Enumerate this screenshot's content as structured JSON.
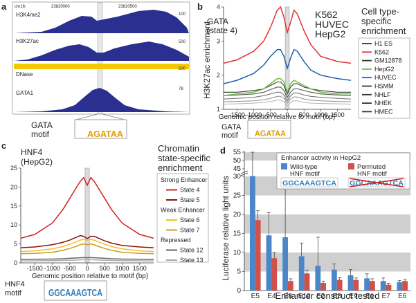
{
  "panels": {
    "a": "a",
    "b": "b",
    "c": "c",
    "d": "d"
  },
  "panel_a": {
    "coords": [
      "chr16:",
      "23820000",
      "23820500"
    ],
    "tracks": [
      {
        "label": "H3K4me2",
        "max": "100"
      },
      {
        "label": "H3K27ac",
        "max": "500"
      },
      {
        "label": "DNase",
        "max": "500"
      },
      {
        "label": "GATA1",
        "max": "78"
      }
    ],
    "motif_label": [
      "GATA",
      "motif"
    ],
    "motif_text": "AGATAA"
  },
  "panel_b": {
    "inset": [
      "GATA",
      "(state 4)"
    ],
    "series_labels": [
      {
        "text": "K562",
        "color": "#e03030"
      },
      {
        "text": "HUVEC",
        "color": "#1f5fb0"
      },
      {
        "text": "HepG2",
        "color": "#6abf45"
      }
    ],
    "legend_title": [
      "Cell type-",
      "specific",
      "enrichment"
    ],
    "legend": [
      {
        "name": "H1 ES",
        "color": "#333333"
      },
      {
        "name": "K562",
        "color": "#e03030"
      },
      {
        "name": "GM12878",
        "color": "#333333"
      },
      {
        "name": "HepG2",
        "color": "#6abf45"
      },
      {
        "name": "HUVEC",
        "color": "#1f5fb0"
      },
      {
        "name": "HSMM",
        "color": "#333333"
      },
      {
        "name": "NHLF",
        "color": "#333333"
      },
      {
        "name": "NHEK",
        "color": "#333333"
      },
      {
        "name": "HMEC",
        "color": "#333333"
      }
    ],
    "motif_label": [
      "GATA",
      "motif"
    ],
    "motif_text": "AGATAA"
  },
  "panel_c": {
    "inset": [
      "HNF4",
      "(HepG2)"
    ],
    "legend_title": [
      "Chromatin",
      "state-specific",
      "enrichment"
    ],
    "legend": [
      {
        "header": "Strong Enhancer"
      },
      {
        "name": "State 4",
        "color": "#d42020"
      },
      {
        "name": "State 5",
        "color": "#8a1010"
      },
      {
        "header": "Weak Enhancer"
      },
      {
        "name": "State 6",
        "color": "#f0c020"
      },
      {
        "name": "State 7",
        "color": "#c8a020"
      },
      {
        "header": "Repressed"
      },
      {
        "name": "State 12",
        "color": "#666666"
      },
      {
        "name": "State 13",
        "color": "#aaaaaa"
      }
    ],
    "motif_label": [
      "HNF4",
      "motif"
    ],
    "motif_text": "GGCAAAGTCA"
  },
  "panel_d": {
    "legend_title": "Enhancer activity in HepG2",
    "legend": [
      {
        "name": "Wild-type",
        "name2": "HNF motif",
        "color": "#4a86c8"
      },
      {
        "name": "Permuted",
        "name2": "HNF motif",
        "color": "#d0504a"
      }
    ],
    "motif_text": "GGCAAAGTCA"
  },
  "chart_data": [
    {
      "type": "line",
      "panel": "b",
      "xlabel": "Genomic position relative to motif (bp)",
      "ylabel": "H3K27ac enrichment",
      "xlim": [
        -1900,
        1900
      ],
      "ylim": [
        1,
        4
      ],
      "xticks": [
        -1500,
        -1000,
        -500,
        0,
        500,
        1000,
        1500
      ],
      "yticks": [
        1,
        2,
        3,
        4
      ],
      "x": [
        -1900,
        -1500,
        -1000,
        -700,
        -500,
        -300,
        -200,
        -100,
        0,
        100,
        200,
        300,
        500,
        700,
        1000,
        1500,
        1900
      ],
      "series": [
        {
          "name": "K562",
          "color": "#e03030",
          "values": [
            2.35,
            2.45,
            2.7,
            3.0,
            3.4,
            3.9,
            4.0,
            3.7,
            3.25,
            3.55,
            3.9,
            3.8,
            3.3,
            2.9,
            2.55,
            2.4,
            2.35
          ]
        },
        {
          "name": "HUVEC",
          "color": "#1f5fb0",
          "values": [
            1.75,
            1.85,
            2.05,
            2.3,
            2.55,
            2.75,
            2.75,
            2.55,
            2.2,
            2.5,
            2.75,
            2.7,
            2.4,
            2.15,
            2.0,
            1.9,
            1.85
          ]
        },
        {
          "name": "HepG2",
          "color": "#6abf45",
          "values": [
            1.4,
            1.45,
            1.5,
            1.6,
            1.75,
            1.9,
            1.9,
            1.8,
            1.5,
            1.75,
            1.85,
            1.8,
            1.7,
            1.6,
            1.5,
            1.45,
            1.45
          ]
        },
        {
          "color": "#333333",
          "values": [
            1.5,
            1.5,
            1.55,
            1.6,
            1.7,
            1.8,
            1.8,
            1.7,
            1.45,
            1.65,
            1.75,
            1.75,
            1.65,
            1.6,
            1.55,
            1.5,
            1.5
          ]
        },
        {
          "color": "#555555",
          "values": [
            1.4,
            1.42,
            1.45,
            1.5,
            1.58,
            1.65,
            1.65,
            1.55,
            1.35,
            1.5,
            1.6,
            1.6,
            1.55,
            1.5,
            1.45,
            1.42,
            1.4
          ]
        },
        {
          "color": "#777777",
          "values": [
            1.3,
            1.32,
            1.35,
            1.4,
            1.45,
            1.5,
            1.5,
            1.42,
            1.25,
            1.4,
            1.48,
            1.48,
            1.42,
            1.38,
            1.35,
            1.32,
            1.3
          ]
        },
        {
          "color": "#999999",
          "values": [
            1.22,
            1.23,
            1.25,
            1.28,
            1.32,
            1.38,
            1.38,
            1.32,
            1.18,
            1.3,
            1.36,
            1.36,
            1.3,
            1.27,
            1.25,
            1.23,
            1.22
          ]
        },
        {
          "color": "#bbbbbb",
          "values": [
            1.15,
            1.16,
            1.18,
            1.2,
            1.23,
            1.27,
            1.27,
            1.22,
            1.1,
            1.2,
            1.25,
            1.25,
            1.2,
            1.18,
            1.17,
            1.16,
            1.15
          ]
        }
      ]
    },
    {
      "type": "line",
      "panel": "c",
      "xlabel": "Genomic position relative to motif (bp)",
      "ylabel": "",
      "xlim": [
        -1900,
        1900
      ],
      "ylim": [
        0,
        25
      ],
      "xticks": [
        -1500,
        -1000,
        -500,
        0,
        500,
        1000,
        1500
      ],
      "yticks": [
        0,
        5,
        10,
        15,
        20,
        25
      ],
      "x": [
        -1900,
        -1500,
        -1000,
        -700,
        -500,
        -300,
        -200,
        -100,
        0,
        100,
        200,
        300,
        500,
        700,
        1000,
        1500,
        1900
      ],
      "series": [
        {
          "name": "State 4",
          "color": "#d42020",
          "values": [
            6.5,
            7.5,
            10.5,
            14.0,
            17.0,
            20.0,
            21.5,
            22.5,
            20.5,
            22.5,
            21.5,
            20.0,
            17.0,
            14.0,
            10.5,
            7.5,
            6.5
          ]
        },
        {
          "name": "State 5",
          "color": "#8a1010",
          "values": [
            4.0,
            4.2,
            4.8,
            5.4,
            6.0,
            6.8,
            7.2,
            7.0,
            6.4,
            7.0,
            7.0,
            6.6,
            5.8,
            5.2,
            4.6,
            4.2,
            4.0
          ]
        },
        {
          "name": "State 6",
          "color": "#f0c020",
          "values": [
            3.0,
            3.2,
            3.7,
            4.3,
            4.9,
            5.6,
            6.0,
            6.2,
            6.0,
            6.2,
            6.0,
            5.6,
            4.9,
            4.3,
            3.7,
            3.2,
            3.0
          ]
        },
        {
          "name": "State 7",
          "color": "#c8a020",
          "values": [
            2.4,
            2.5,
            2.8,
            3.3,
            3.8,
            4.4,
            4.8,
            5.0,
            4.8,
            5.0,
            4.8,
            4.4,
            3.8,
            3.3,
            2.8,
            2.5,
            2.4
          ]
        },
        {
          "name": "State 12",
          "color": "#666666",
          "values": [
            0.9,
            0.95,
            1.0,
            1.1,
            1.2,
            1.3,
            1.35,
            1.4,
            1.35,
            1.4,
            1.35,
            1.3,
            1.2,
            1.1,
            1.0,
            0.95,
            0.9
          ]
        },
        {
          "name": "State 13",
          "color": "#aaaaaa",
          "values": [
            0.5,
            0.55,
            0.6,
            0.65,
            0.7,
            0.75,
            0.8,
            0.85,
            0.8,
            0.85,
            0.8,
            0.75,
            0.7,
            0.65,
            0.6,
            0.55,
            0.5
          ]
        }
      ]
    },
    {
      "type": "bar",
      "panel": "d",
      "xlabel": "Enhancer construct tested",
      "ylabel": "Luciferase relative light units",
      "yticks": [
        0,
        5,
        10,
        15,
        20,
        25,
        30,
        45,
        50,
        55
      ],
      "categories": [
        "E5",
        "E4",
        "E8",
        "E10",
        "E2",
        "E3",
        "E9",
        "E1",
        "E7",
        "E6"
      ],
      "series": [
        {
          "name": "Wild-type HNF motif",
          "color": "#4a86c8",
          "values": [
            31.0,
            14.5,
            14.0,
            9.0,
            6.5,
            5.5,
            4.0,
            3.2,
            2.5,
            2.2
          ],
          "errors": [
            25.0,
            6.0,
            18.0,
            3.5,
            7.5,
            1.5,
            1.5,
            1.2,
            0.8,
            0.4
          ]
        },
        {
          "name": "Permuted HNF motif",
          "color": "#d0504a",
          "values": [
            18.5,
            8.5,
            2.5,
            4.5,
            2.0,
            2.8,
            2.8,
            2.5,
            1.5,
            2.5
          ],
          "errors": [
            2.5,
            1.5,
            0.6,
            0.9,
            0.5,
            0.6,
            0.5,
            0.6,
            0.4,
            0.4
          ]
        }
      ]
    }
  ]
}
